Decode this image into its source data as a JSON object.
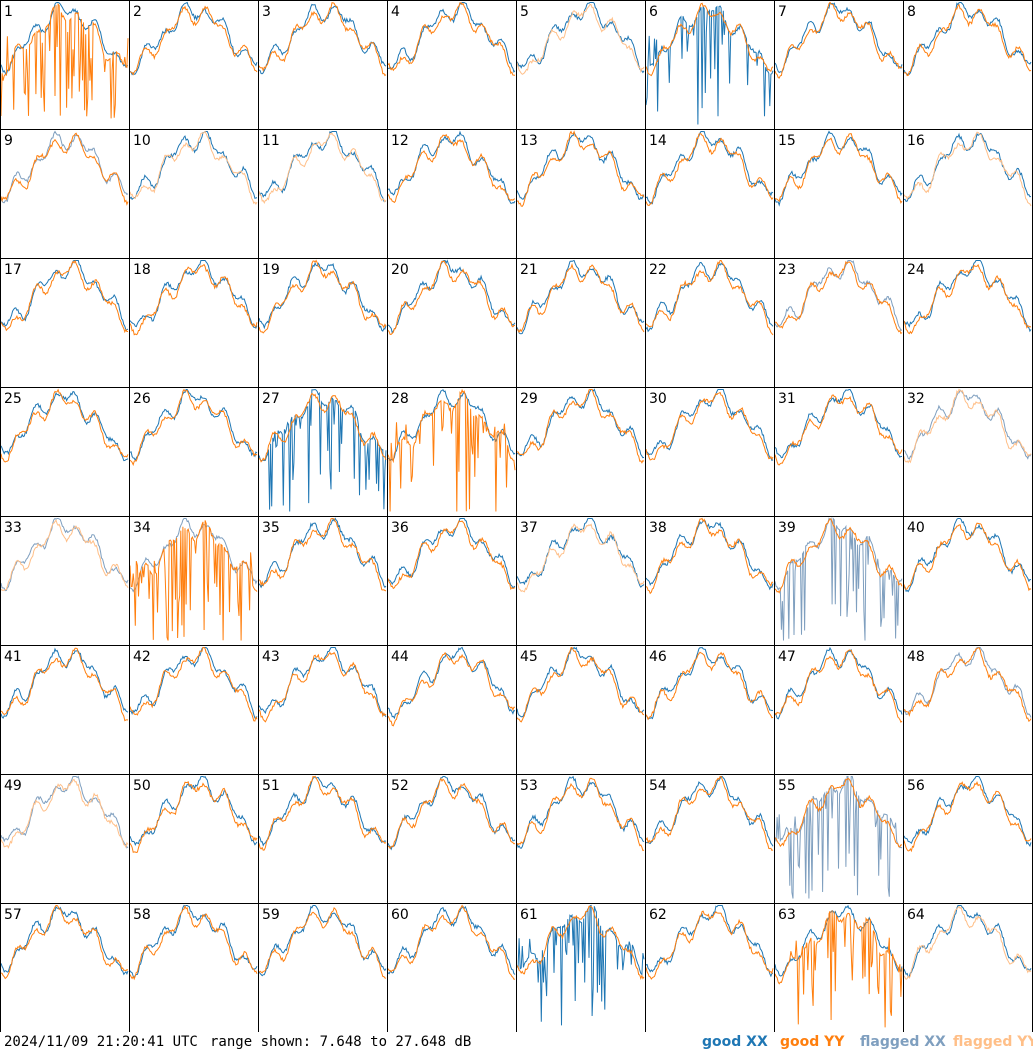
{
  "chart_data": {
    "type": "line",
    "layout": "small-multiples",
    "panels": [
      "1",
      "2",
      "3",
      "4",
      "5",
      "6",
      "7",
      "8",
      "9",
      "10",
      "11",
      "12",
      "13",
      "14",
      "15",
      "16",
      "17",
      "18",
      "19",
      "20",
      "21",
      "22",
      "23",
      "24",
      "25",
      "26",
      "27",
      "28",
      "29",
      "30",
      "31",
      "32",
      "33",
      "34",
      "35",
      "36",
      "37",
      "38",
      "39",
      "40",
      "41",
      "42",
      "43",
      "44",
      "45",
      "46",
      "47",
      "48",
      "49",
      "50",
      "51",
      "52",
      "53",
      "54",
      "55",
      "56",
      "57",
      "58",
      "59",
      "60",
      "61",
      "62",
      "63",
      "64"
    ],
    "y_range_db": [
      7.648,
      27.648
    ],
    "timestamp": "2024/11/09 21:20:41 UTC",
    "range_label": "range shown: 7.648 to 27.648 dB",
    "series": [
      {
        "name": "good XX",
        "color": "#1f77b4"
      },
      {
        "name": "good YY",
        "color": "#ff7f0e"
      },
      {
        "name": "flagged XX",
        "color": "#7f9fbf"
      },
      {
        "name": "flagged YY",
        "color": "#ffbf88"
      }
    ],
    "panel_status": {
      "flagged_xx": [
        "9",
        "23",
        "32",
        "33",
        "34",
        "39",
        "48",
        "49",
        "55"
      ],
      "flagged_yy": [
        "5",
        "10",
        "11",
        "16",
        "32",
        "33",
        "37",
        "49",
        "64"
      ],
      "spiky_yy": [
        "1",
        "28",
        "34",
        "63"
      ],
      "spiky_xx": [
        "6",
        "27",
        "39",
        "55",
        "61"
      ]
    }
  }
}
